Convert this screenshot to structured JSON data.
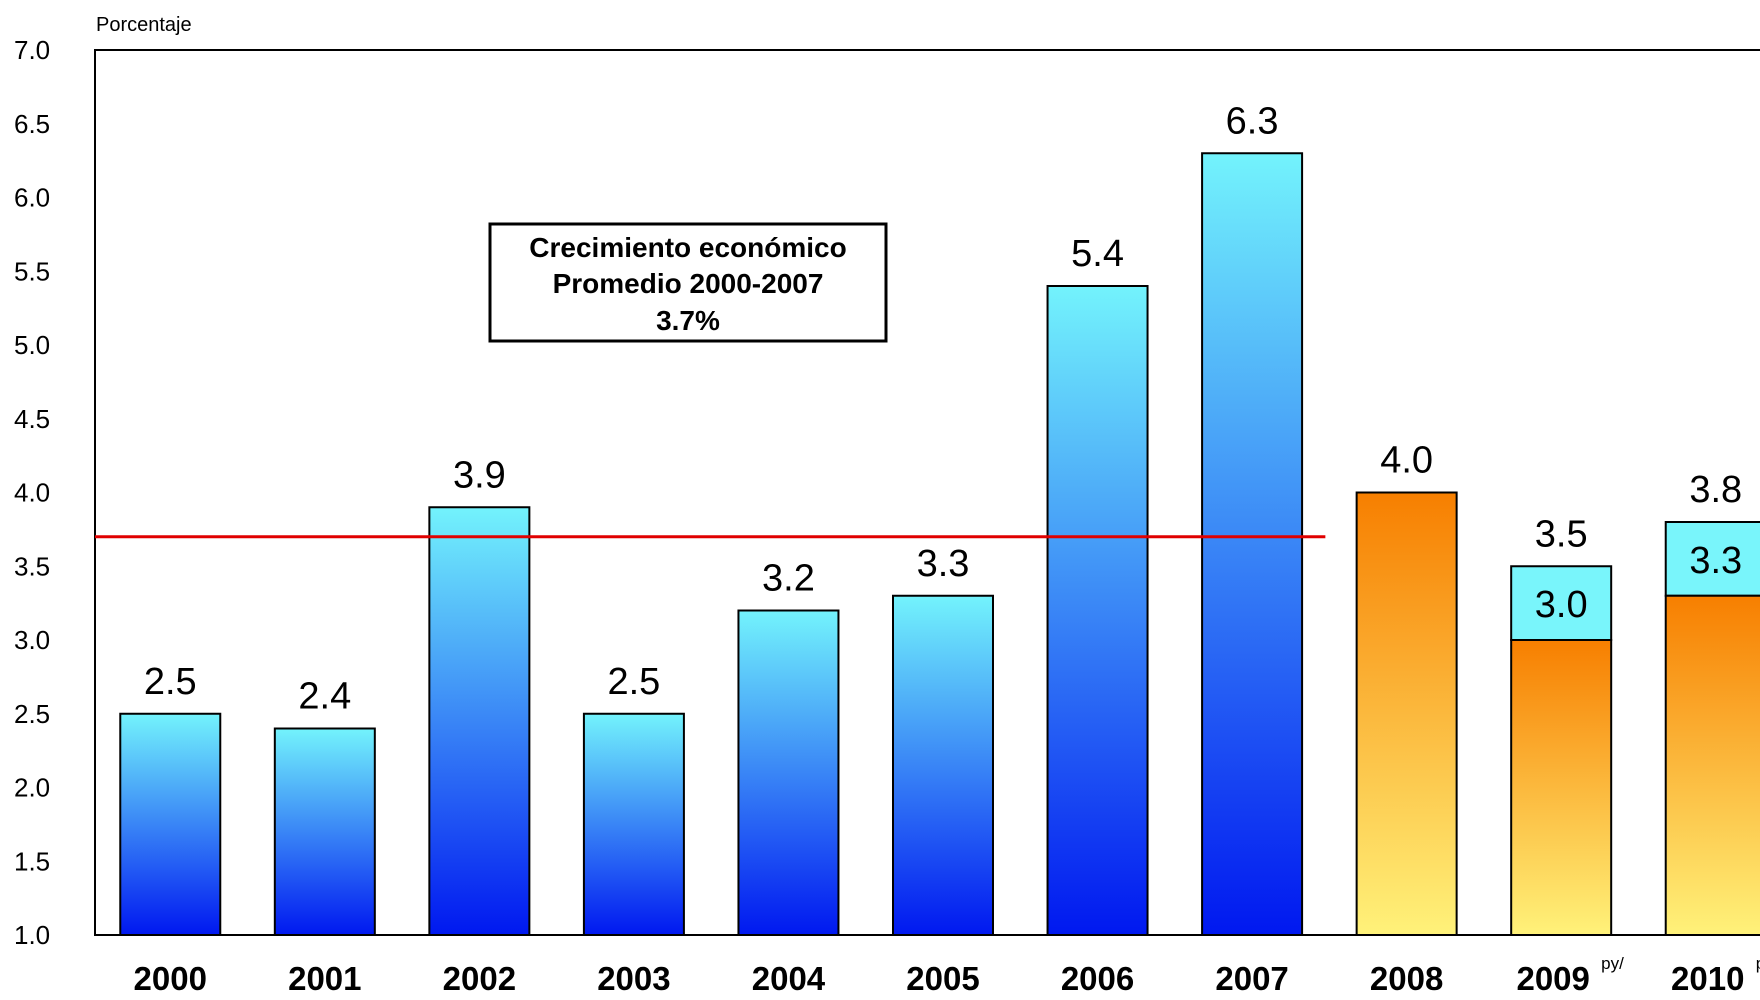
{
  "chart_data": {
    "type": "bar",
    "ylabel": "Porcentaje",
    "ylim": [
      1.0,
      7.0
    ],
    "yticks": [
      "7.0",
      "6.5",
      "6.0",
      "5.5",
      "5.0",
      "4.5",
      "4.0",
      "3.5",
      "3.0",
      "2.5",
      "2.0",
      "1.5",
      "1.0"
    ],
    "categories": [
      {
        "label": "2000",
        "sup": ""
      },
      {
        "label": "2001",
        "sup": ""
      },
      {
        "label": "2002",
        "sup": ""
      },
      {
        "label": "2003",
        "sup": ""
      },
      {
        "label": "2004",
        "sup": ""
      },
      {
        "label": "2005",
        "sup": ""
      },
      {
        "label": "2006",
        "sup": ""
      },
      {
        "label": "2007",
        "sup": ""
      },
      {
        "label": "2008",
        "sup": ""
      },
      {
        "label": "2009",
        "sup": "py/"
      },
      {
        "label": "2010",
        "sup": "py/"
      }
    ],
    "bars": [
      {
        "value": 2.5,
        "label": "2.5",
        "style": "blue"
      },
      {
        "value": 2.4,
        "label": "2.4",
        "style": "blue"
      },
      {
        "value": 3.9,
        "label": "3.9",
        "style": "blue"
      },
      {
        "value": 2.5,
        "label": "2.5",
        "style": "blue"
      },
      {
        "value": 3.2,
        "label": "3.2",
        "style": "blue"
      },
      {
        "value": 3.3,
        "label": "3.3",
        "style": "blue"
      },
      {
        "value": 5.4,
        "label": "5.4",
        "style": "blue"
      },
      {
        "value": 6.3,
        "label": "6.3",
        "style": "blue"
      },
      {
        "value": 4.0,
        "label": "4.0",
        "style": "orange"
      },
      {
        "value": 3.5,
        "label": "3.5",
        "style": "orange",
        "inner_value": 3.0,
        "inner_label": "3.0"
      },
      {
        "value": 3.8,
        "label": "3.8",
        "style": "orange",
        "inner_value": 3.3,
        "inner_label": "3.3"
      }
    ],
    "reference_line": {
      "value": 3.7,
      "color": "#e00000"
    },
    "annotation": {
      "lines": [
        "Crecimiento económico",
        "Promedio 2000-2007",
        "3.7%"
      ]
    },
    "colors": {
      "blue_top": "#73f3fc",
      "blue_bottom": "#0018f0",
      "orange_top": "#f77f00",
      "orange_bottom": "#fff27a",
      "cyan_cap": "#79f5fb"
    }
  }
}
